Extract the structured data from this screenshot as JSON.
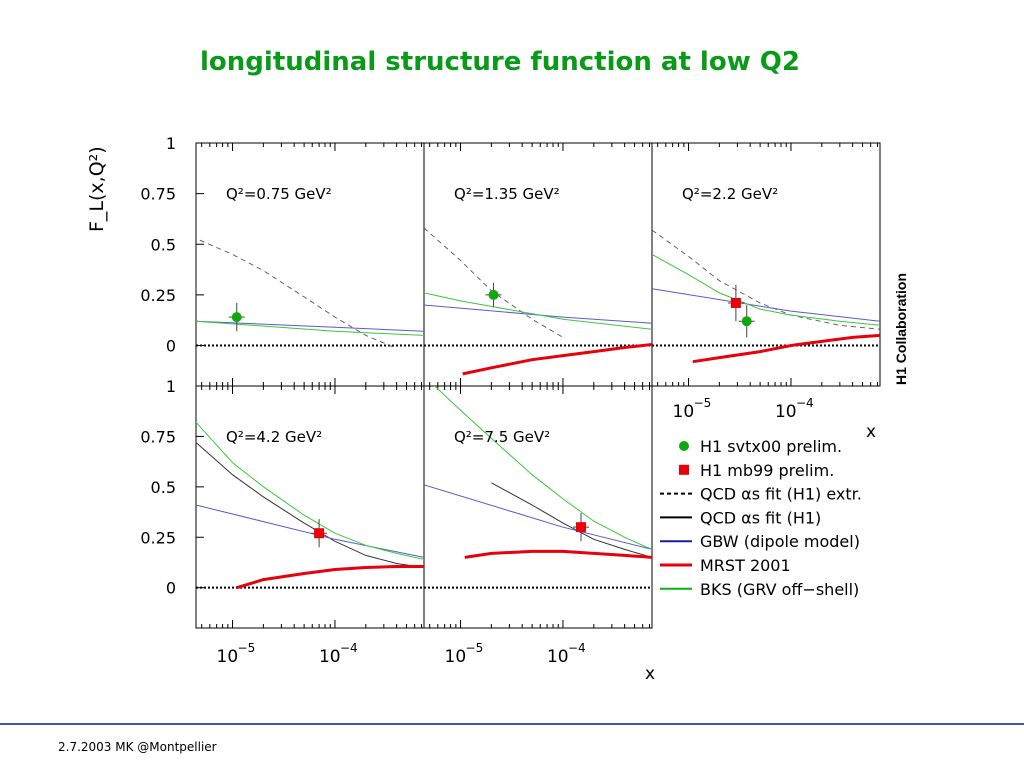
{
  "slide": {
    "title": "longitudinal structure function at low Q2",
    "footer": "2.7.2003 MK @Montpellier"
  },
  "chart_data": {
    "type": "line",
    "collaboration": "H1 Collaboration",
    "y_label": "F_L(x,Q²)",
    "x_label": "x",
    "x_scale": "log",
    "xlim": [
      4.4e-06,
      0.00074
    ],
    "ylim": [
      -0.2,
      1.0
    ],
    "y_ticks": [
      {
        "value": 1,
        "label": "1"
      },
      {
        "value": 0.75,
        "label": "0.75"
      },
      {
        "value": 0.5,
        "label": "0.5"
      },
      {
        "value": 0.25,
        "label": "0.25"
      },
      {
        "value": 0,
        "label": "0"
      }
    ],
    "x_ticks": [
      {
        "value": 1e-05,
        "base": "10",
        "exp": "−5"
      },
      {
        "value": 0.0001,
        "base": "10",
        "exp": "−4"
      }
    ],
    "panels": [
      {
        "q2_label": "Q²=0.75 GeV²",
        "points": [
          {
            "series": "H1 svtx00 prelim.",
            "x": 1.1e-05,
            "y": 0.14,
            "err": 0.07
          }
        ],
        "curves": [
          {
            "series": "QCD αs fit (H1) extr.",
            "x": [
              4.8e-06,
              1e-05,
              2e-05,
              5e-05,
              0.0001,
              0.0002,
              0.00038
            ],
            "y": [
              0.52,
              0.45,
              0.37,
              0.24,
              0.14,
              0.05,
              -0.01
            ]
          },
          {
            "series": "GBW (dipole model)",
            "x": [
              4.4e-06,
              0.0001,
              0.00074
            ],
            "y": [
              0.12,
              0.09,
              0.07
            ]
          },
          {
            "series": "BKS (GRV off−shell)",
            "x": [
              4.4e-06,
              0.0001,
              0.00074
            ],
            "y": [
              0.12,
              0.07,
              0.05
            ]
          }
        ]
      },
      {
        "q2_label": "Q²=1.35 GeV²",
        "points": [
          {
            "series": "H1 svtx00 prelim.",
            "x": 2.1e-05,
            "y": 0.25,
            "err": 0.06
          }
        ],
        "curves": [
          {
            "series": "QCD αs fit (H1) extr.",
            "x": [
              4.4e-06,
              1e-05,
              2e-05,
              5e-05,
              0.0001
            ],
            "y": [
              0.58,
              0.42,
              0.27,
              0.13,
              0.04
            ]
          },
          {
            "series": "GBW (dipole model)",
            "x": [
              4.4e-06,
              0.0001,
              0.00074
            ],
            "y": [
              0.2,
              0.14,
              0.11
            ]
          },
          {
            "series": "BKS (GRV off−shell)",
            "x": [
              4.4e-06,
              1e-05,
              0.0001,
              0.00074
            ],
            "y": [
              0.26,
              0.22,
              0.13,
              0.08
            ]
          },
          {
            "series": "MRST 2001",
            "x": [
              1.05e-05,
              2e-05,
              5e-05,
              0.0001,
              0.0002,
              0.0004,
              0.00074
            ],
            "y": [
              -0.14,
              -0.11,
              -0.07,
              -0.05,
              -0.03,
              -0.01,
              0.005
            ]
          }
        ]
      },
      {
        "q2_label": "Q²=2.2 GeV²",
        "points": [
          {
            "series": "H1 mb99 prelim.",
            "x": 2.9e-05,
            "y": 0.21,
            "err": 0.09
          },
          {
            "series": "H1 svtx00 prelim.",
            "x": 3.7e-05,
            "y": 0.12,
            "err": 0.08
          }
        ],
        "curves": [
          {
            "series": "QCD αs fit (H1) extr.",
            "x": [
              4.4e-06,
              1e-05,
              2e-05,
              5e-05,
              0.0001,
              0.0003,
              0.00074
            ],
            "y": [
              0.57,
              0.44,
              0.32,
              0.21,
              0.15,
              0.1,
              0.08
            ]
          },
          {
            "series": "GBW (dipole model)",
            "x": [
              4.4e-06,
              0.0001,
              0.00074
            ],
            "y": [
              0.28,
              0.17,
              0.12
            ]
          },
          {
            "series": "BKS (GRV off−shell)",
            "x": [
              4.4e-06,
              1e-05,
              2e-05,
              5e-05,
              0.0001,
              0.0003,
              0.00074
            ],
            "y": [
              0.45,
              0.35,
              0.26,
              0.18,
              0.15,
              0.12,
              0.1
            ]
          },
          {
            "series": "MRST 2001",
            "x": [
              1.1e-05,
              2e-05,
              5e-05,
              0.0001,
              0.0002,
              0.0004,
              0.00074
            ],
            "y": [
              -0.08,
              -0.06,
              -0.03,
              0.0,
              0.02,
              0.04,
              0.05
            ]
          }
        ]
      },
      {
        "q2_label": "Q²=4.2 GeV²",
        "points": [
          {
            "series": "H1 mb99 prelim.",
            "x": 7e-05,
            "y": 0.27,
            "err": 0.07
          }
        ],
        "curves": [
          {
            "series": "QCD αs fit (H1)",
            "x": [
              4.4e-06,
              1e-05,
              2e-05,
              5e-05,
              0.0001,
              0.0002,
              0.0004,
              0.00074
            ],
            "y": [
              0.72,
              0.56,
              0.45,
              0.32,
              0.23,
              0.16,
              0.12,
              0.1
            ]
          },
          {
            "series": "GBW (dipole model)",
            "x": [
              4.4e-06,
              0.0001,
              0.00074
            ],
            "y": [
              0.41,
              0.24,
              0.15
            ]
          },
          {
            "series": "BKS (GRV off−shell)",
            "x": [
              4.4e-06,
              1e-05,
              2e-05,
              5e-05,
              0.0001,
              0.0002,
              0.0004,
              0.00074
            ],
            "y": [
              0.82,
              0.62,
              0.5,
              0.36,
              0.27,
              0.21,
              0.17,
              0.14
            ]
          },
          {
            "series": "MRST 2001",
            "x": [
              1.1e-05,
              2e-05,
              5e-05,
              0.0001,
              0.0002,
              0.0004,
              0.00074
            ],
            "y": [
              0.0,
              0.04,
              0.07,
              0.09,
              0.1,
              0.105,
              0.105
            ]
          }
        ]
      },
      {
        "q2_label": "Q²=7.5 GeV²",
        "points": [
          {
            "series": "H1 mb99 prelim.",
            "x": 0.00015,
            "y": 0.3,
            "err": 0.07
          }
        ],
        "curves": [
          {
            "series": "QCD αs fit (H1)",
            "x": [
              2e-05,
              5e-05,
              0.0001,
              0.0002,
              0.0004,
              0.00074
            ],
            "y": [
              0.52,
              0.41,
              0.32,
              0.24,
              0.19,
              0.15
            ]
          },
          {
            "series": "GBW (dipole model)",
            "x": [
              4.4e-06,
              0.0001,
              0.00074
            ],
            "y": [
              0.51,
              0.3,
              0.19
            ]
          },
          {
            "series": "BKS (GRV off−shell)",
            "x": [
              4.4e-06,
              1e-05,
              2e-05,
              5e-05,
              0.0001,
              0.0002,
              0.0004,
              0.00074
            ],
            "y": [
              1.05,
              0.88,
              0.74,
              0.56,
              0.44,
              0.33,
              0.25,
              0.19
            ]
          },
          {
            "series": "MRST 2001",
            "x": [
              1.1e-05,
              2e-05,
              5e-05,
              0.0001,
              0.0002,
              0.0004,
              0.00074
            ],
            "y": [
              0.15,
              0.17,
              0.18,
              0.18,
              0.17,
              0.16,
              0.15
            ]
          }
        ]
      }
    ],
    "legend": [
      {
        "label": "H1 svtx00 prelim.",
        "marker": "circle",
        "color": "#0fa80f"
      },
      {
        "label": "H1 mb99 prelim.",
        "marker": "square",
        "color": "#e8000b"
      },
      {
        "label": "QCD αs fit (H1) extr.",
        "line": "dashed",
        "color": "#000000"
      },
      {
        "label": "QCD αs fit (H1)",
        "line": "solid",
        "color": "#000000"
      },
      {
        "label": "GBW (dipole model)",
        "line": "solid",
        "color": "#1a1aa8"
      },
      {
        "label": "MRST 2001",
        "line": "thick",
        "color": "#e8000b"
      },
      {
        "label": "BKS (GRV off−shell)",
        "line": "solid",
        "color": "#10b010"
      }
    ],
    "series_colors": {
      "QCD αs fit (H1) extr.": "#555555",
      "QCD αs fit (H1)": "#333333",
      "GBW (dipole model)": "#5a5ad0",
      "MRST 2001": "#e8000b",
      "BKS (GRV off−shell)": "#3cc83c",
      "H1 svtx00 prelim.": "#0fa80f",
      "H1 mb99 prelim.": "#e8000b"
    }
  }
}
